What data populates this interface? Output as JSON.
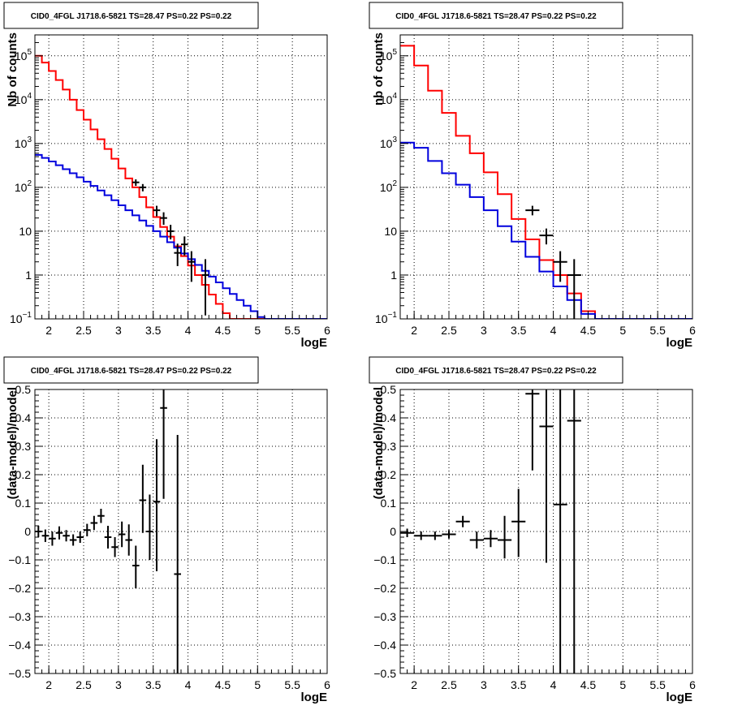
{
  "chart_data": [
    {
      "panel": "top-left",
      "type": "step-histogram",
      "title": "CID0_4FGL J1718.6-5821 TS=28.47 PS=0.22 PS=0.22",
      "xlabel": "logE",
      "ylabel": "Nb of counts",
      "xlim": [
        1.8,
        6.0
      ],
      "ylim": [
        0.1,
        300000
      ],
      "log_y": true,
      "grid": true,
      "x_ticks": [
        2,
        2.5,
        3,
        3.5,
        4,
        4.5,
        5,
        5.5,
        6
      ],
      "x_tick_labels": [
        "2",
        "2.5",
        "3",
        "3.5",
        "4",
        "4.5",
        "5",
        "5.5",
        "6"
      ],
      "y_ticks": [
        0.1,
        1,
        10,
        100,
        1000,
        10000,
        100000
      ],
      "y_tick_labels": [
        [
          "10",
          "−1"
        ],
        [
          "1",
          ""
        ],
        [
          "10",
          ""
        ],
        [
          "10",
          "2"
        ],
        [
          "10",
          "3"
        ],
        [
          "10",
          "4"
        ],
        [
          "10",
          "5"
        ]
      ],
      "x_edges": [
        1.8,
        1.9,
        2.0,
        2.1,
        2.2,
        2.3,
        2.4,
        2.5,
        2.6,
        2.7,
        2.8,
        2.9,
        3.0,
        3.1,
        3.2,
        3.3,
        3.4,
        3.5,
        3.6,
        3.7,
        3.8,
        3.9,
        4.0,
        4.1,
        4.2,
        4.3,
        4.4,
        4.5,
        4.6,
        4.7,
        4.8,
        4.9,
        5.0,
        5.1,
        5.2,
        5.3,
        5.4,
        5.5,
        5.6,
        5.7,
        5.8,
        5.9,
        6.0
      ],
      "series": [
        {
          "role": "total-model",
          "color": "#ff0000",
          "values": [
            100000,
            70000,
            45000,
            28000,
            17000,
            10000,
            5800,
            3500,
            2100,
            1250,
            750,
            450,
            270,
            160,
            100,
            60,
            35,
            21,
            12.5,
            7.5,
            4.5,
            2.7,
            1.65,
            1.0,
            0.6,
            0.36,
            0.22,
            0.135,
            0.1,
            0.1,
            0.1,
            0.1,
            0.1,
            0.1,
            0.1,
            0.1,
            0.1,
            0.1,
            0.1,
            0.1,
            0.1,
            0.1
          ]
        },
        {
          "role": "source-model",
          "color": "#0000dd",
          "values": [
            550,
            470,
            390,
            320,
            260,
            210,
            170,
            135,
            108,
            85,
            66,
            51,
            39,
            30,
            23,
            17.5,
            13.2,
            10,
            7.5,
            5.6,
            4.2,
            3.1,
            2.3,
            1.7,
            1.25,
            0.92,
            0.68,
            0.5,
            0.37,
            0.27,
            0.2,
            0.15,
            0.11,
            0.1,
            0.1,
            0.1,
            0.1,
            0.1,
            0.1,
            0.1,
            0.1,
            0.1
          ]
        }
      ],
      "data_points": [
        {
          "x": 3.25,
          "xerr": 0.05,
          "y": 130,
          "ylo": 108,
          "yhi": 152
        },
        {
          "x": 3.35,
          "xerr": 0.05,
          "y": 100,
          "ylo": 81,
          "yhi": 119
        },
        {
          "x": 3.55,
          "xerr": 0.05,
          "y": 30,
          "ylo": 22,
          "yhi": 38
        },
        {
          "x": 3.65,
          "xerr": 0.05,
          "y": 20,
          "ylo": 14,
          "yhi": 27
        },
        {
          "x": 3.75,
          "xerr": 0.05,
          "y": 10,
          "ylo": 6.5,
          "yhi": 14
        },
        {
          "x": 3.85,
          "xerr": 0.05,
          "y": 3.2,
          "ylo": 1.6,
          "yhi": 5.2
        },
        {
          "x": 3.95,
          "xerr": 0.05,
          "y": 5,
          "ylo": 2.8,
          "yhi": 7.6
        },
        {
          "x": 4.05,
          "xerr": 0.05,
          "y": 2,
          "ylo": 0.7,
          "yhi": 3.5
        },
        {
          "x": 4.25,
          "xerr": 0.05,
          "y": 1,
          "ylo": 0.12,
          "yhi": 2.3
        }
      ]
    },
    {
      "panel": "top-right",
      "type": "step-histogram",
      "title": "CID0_4FGL J1718.6-5821 TS=28.47 PS=0.22 PS=0.22",
      "xlabel": "logE",
      "ylabel": "nb of counts",
      "xlim": [
        1.8,
        6.0
      ],
      "ylim": [
        0.1,
        300000
      ],
      "log_y": true,
      "grid": true,
      "x_ticks": [
        2,
        2.5,
        3,
        3.5,
        4,
        4.5,
        5,
        5.5,
        6
      ],
      "x_tick_labels": [
        "2",
        "2.5",
        "3",
        "3.5",
        "4",
        "4.5",
        "5",
        "5.5",
        "6"
      ],
      "y_ticks": [
        0.1,
        1,
        10,
        100,
        1000,
        10000,
        100000
      ],
      "y_tick_labels": [
        [
          "10",
          "−1"
        ],
        [
          "1",
          ""
        ],
        [
          "10",
          ""
        ],
        [
          "10",
          "2"
        ],
        [
          "10",
          "3"
        ],
        [
          "10",
          "4"
        ],
        [
          "10",
          "5"
        ]
      ],
      "x_edges": [
        1.8,
        2.0,
        2.2,
        2.4,
        2.6,
        2.8,
        3.0,
        3.2,
        3.4,
        3.6,
        3.8,
        4.0,
        4.2,
        4.4,
        4.6,
        4.8,
        5.0,
        5.2,
        5.4,
        5.6,
        5.8,
        6.0
      ],
      "series": [
        {
          "role": "total-model",
          "color": "#ff0000",
          "values": [
            170000,
            60000,
            16000,
            5000,
            1500,
            600,
            220,
            70,
            19,
            6.5,
            2.2,
            1.0,
            0.38,
            0.15,
            0.1,
            0.1,
            0.1,
            0.1,
            0.1,
            0.1,
            0.1
          ]
        },
        {
          "role": "source-model",
          "color": "#0000dd",
          "values": [
            1050,
            800,
            400,
            210,
            115,
            60,
            30,
            13,
            5.8,
            2.6,
            1.2,
            0.55,
            0.27,
            0.13,
            0.1,
            0.1,
            0.1,
            0.1,
            0.1,
            0.1,
            0.1
          ]
        }
      ],
      "data_points": [
        {
          "x": 3.7,
          "xerr": 0.1,
          "y": 30,
          "ylo": 23,
          "yhi": 38
        },
        {
          "x": 3.9,
          "xerr": 0.1,
          "y": 8,
          "ylo": 5,
          "yhi": 11.5
        },
        {
          "x": 4.1,
          "xerr": 0.1,
          "y": 2,
          "ylo": 0.7,
          "yhi": 3.5
        },
        {
          "x": 4.3,
          "xerr": 0.1,
          "y": 1,
          "ylo": 0.1,
          "yhi": 2.3
        }
      ]
    },
    {
      "panel": "bottom-left",
      "type": "scatter-errorbars",
      "title": "CID0_4FGL J1718.6-5821 TS=28.47 PS=0.22 PS=0.22",
      "xlabel": "logE",
      "ylabel": "(data-model)/model",
      "xlim": [
        1.8,
        6.0
      ],
      "ylim": [
        -0.5,
        0.5
      ],
      "log_y": false,
      "grid": true,
      "x_ticks": [
        2,
        2.5,
        3,
        3.5,
        4,
        4.5,
        5,
        5.5,
        6
      ],
      "x_tick_labels": [
        "2",
        "2.5",
        "3",
        "3.5",
        "4",
        "4.5",
        "5",
        "5.5",
        "6"
      ],
      "y_ticks": [
        -0.5,
        -0.4,
        -0.3,
        -0.2,
        -0.1,
        0,
        0.1,
        0.2,
        0.3,
        0.4,
        0.5
      ],
      "y_tick_labels": [
        "−0.5",
        "−0.4",
        "−0.3",
        "−0.2",
        "−0.1",
        "0",
        "0.1",
        "0.2",
        "0.3",
        "0.4",
        "0.5"
      ],
      "data_points": [
        {
          "x": 1.85,
          "xerr": 0.05,
          "y": 0.0,
          "ylo": -0.02,
          "yhi": 0.02
        },
        {
          "x": 1.95,
          "xerr": 0.05,
          "y": -0.015,
          "ylo": -0.037,
          "yhi": 0.007
        },
        {
          "x": 2.05,
          "xerr": 0.05,
          "y": -0.025,
          "ylo": -0.05,
          "yhi": 0.0
        },
        {
          "x": 2.15,
          "xerr": 0.05,
          "y": -0.005,
          "ylo": -0.028,
          "yhi": 0.018
        },
        {
          "x": 2.25,
          "xerr": 0.05,
          "y": -0.015,
          "ylo": -0.035,
          "yhi": 0.005
        },
        {
          "x": 2.35,
          "xerr": 0.05,
          "y": -0.03,
          "ylo": -0.05,
          "yhi": -0.01
        },
        {
          "x": 2.45,
          "xerr": 0.05,
          "y": -0.02,
          "ylo": -0.04,
          "yhi": 0.0
        },
        {
          "x": 2.55,
          "xerr": 0.05,
          "y": 0.005,
          "ylo": -0.017,
          "yhi": 0.027
        },
        {
          "x": 2.65,
          "xerr": 0.05,
          "y": 0.03,
          "ylo": 0.005,
          "yhi": 0.055
        },
        {
          "x": 2.75,
          "xerr": 0.05,
          "y": 0.055,
          "ylo": 0.03,
          "yhi": 0.08
        },
        {
          "x": 2.85,
          "xerr": 0.05,
          "y": -0.02,
          "ylo": -0.06,
          "yhi": 0.02
        },
        {
          "x": 2.95,
          "xerr": 0.05,
          "y": -0.055,
          "ylo": -0.09,
          "yhi": -0.02
        },
        {
          "x": 3.05,
          "xerr": 0.05,
          "y": -0.01,
          "ylo": -0.055,
          "yhi": 0.035
        },
        {
          "x": 3.15,
          "xerr": 0.05,
          "y": -0.03,
          "ylo": -0.085,
          "yhi": 0.025
        },
        {
          "x": 3.25,
          "xerr": 0.05,
          "y": -0.12,
          "ylo": -0.2,
          "yhi": -0.05
        },
        {
          "x": 3.35,
          "xerr": 0.05,
          "y": 0.11,
          "ylo": -0.005,
          "yhi": 0.235
        },
        {
          "x": 3.45,
          "xerr": 0.05,
          "y": 0.0,
          "ylo": -0.1,
          "yhi": 0.13
        },
        {
          "x": 3.55,
          "xerr": 0.05,
          "y": 0.105,
          "ylo": -0.14,
          "yhi": 0.325
        },
        {
          "x": 3.65,
          "xerr": 0.05,
          "y": 0.435,
          "ylo": 0.115,
          "yhi": 0.5
        },
        {
          "x": 3.85,
          "xerr": 0.05,
          "y": -0.15,
          "ylo": -0.5,
          "yhi": 0.34
        }
      ]
    },
    {
      "panel": "bottom-right",
      "type": "scatter-errorbars",
      "title": "CID0_4FGL J1718.6-5821 TS=28.47 PS=0.22 PS=0.22",
      "xlabel": "logE",
      "ylabel": "(data-model)/model",
      "xlim": [
        1.8,
        6.0
      ],
      "ylim": [
        -0.5,
        0.5
      ],
      "log_y": false,
      "grid": true,
      "x_ticks": [
        2,
        2.5,
        3,
        3.5,
        4,
        4.5,
        5,
        5.5,
        6
      ],
      "x_tick_labels": [
        "2",
        "2.5",
        "3",
        "3.5",
        "4",
        "4.5",
        "5",
        "5.5",
        "6"
      ],
      "y_ticks": [
        -0.5,
        -0.4,
        -0.3,
        -0.2,
        -0.1,
        0,
        0.1,
        0.2,
        0.3,
        0.4,
        0.5
      ],
      "y_tick_labels": [
        "−0.5",
        "−0.4",
        "−0.3",
        "−0.2",
        "−0.1",
        "0",
        "0.1",
        "0.2",
        "0.3",
        "0.4",
        "0.5"
      ],
      "data_points": [
        {
          "x": 1.9,
          "xerr": 0.1,
          "y": -0.005,
          "ylo": -0.02,
          "yhi": 0.01
        },
        {
          "x": 2.1,
          "xerr": 0.1,
          "y": -0.015,
          "ylo": -0.03,
          "yhi": 0.0
        },
        {
          "x": 2.3,
          "xerr": 0.1,
          "y": -0.015,
          "ylo": -0.03,
          "yhi": 0.0
        },
        {
          "x": 2.5,
          "xerr": 0.1,
          "y": -0.01,
          "ylo": -0.025,
          "yhi": 0.005
        },
        {
          "x": 2.7,
          "xerr": 0.1,
          "y": 0.035,
          "ylo": 0.015,
          "yhi": 0.055
        },
        {
          "x": 2.9,
          "xerr": 0.1,
          "y": -0.03,
          "ylo": -0.06,
          "yhi": 0.0
        },
        {
          "x": 3.1,
          "xerr": 0.1,
          "y": -0.025,
          "ylo": -0.055,
          "yhi": 0.005
        },
        {
          "x": 3.3,
          "xerr": 0.1,
          "y": -0.03,
          "ylo": -0.095,
          "yhi": 0.055
        },
        {
          "x": 3.5,
          "xerr": 0.1,
          "y": 0.035,
          "ylo": -0.09,
          "yhi": 0.15
        },
        {
          "x": 3.7,
          "xerr": 0.1,
          "y": 0.485,
          "ylo": 0.215,
          "yhi": 0.5
        },
        {
          "x": 3.9,
          "xerr": 0.1,
          "y": 0.37,
          "ylo": -0.11,
          "yhi": 0.5
        },
        {
          "x": 4.1,
          "xerr": 0.1,
          "y": 0.095,
          "ylo": -0.5,
          "yhi": 0.5
        },
        {
          "x": 4.3,
          "xerr": 0.1,
          "y": 0.39,
          "ylo": -0.5,
          "yhi": 0.5
        }
      ]
    }
  ]
}
